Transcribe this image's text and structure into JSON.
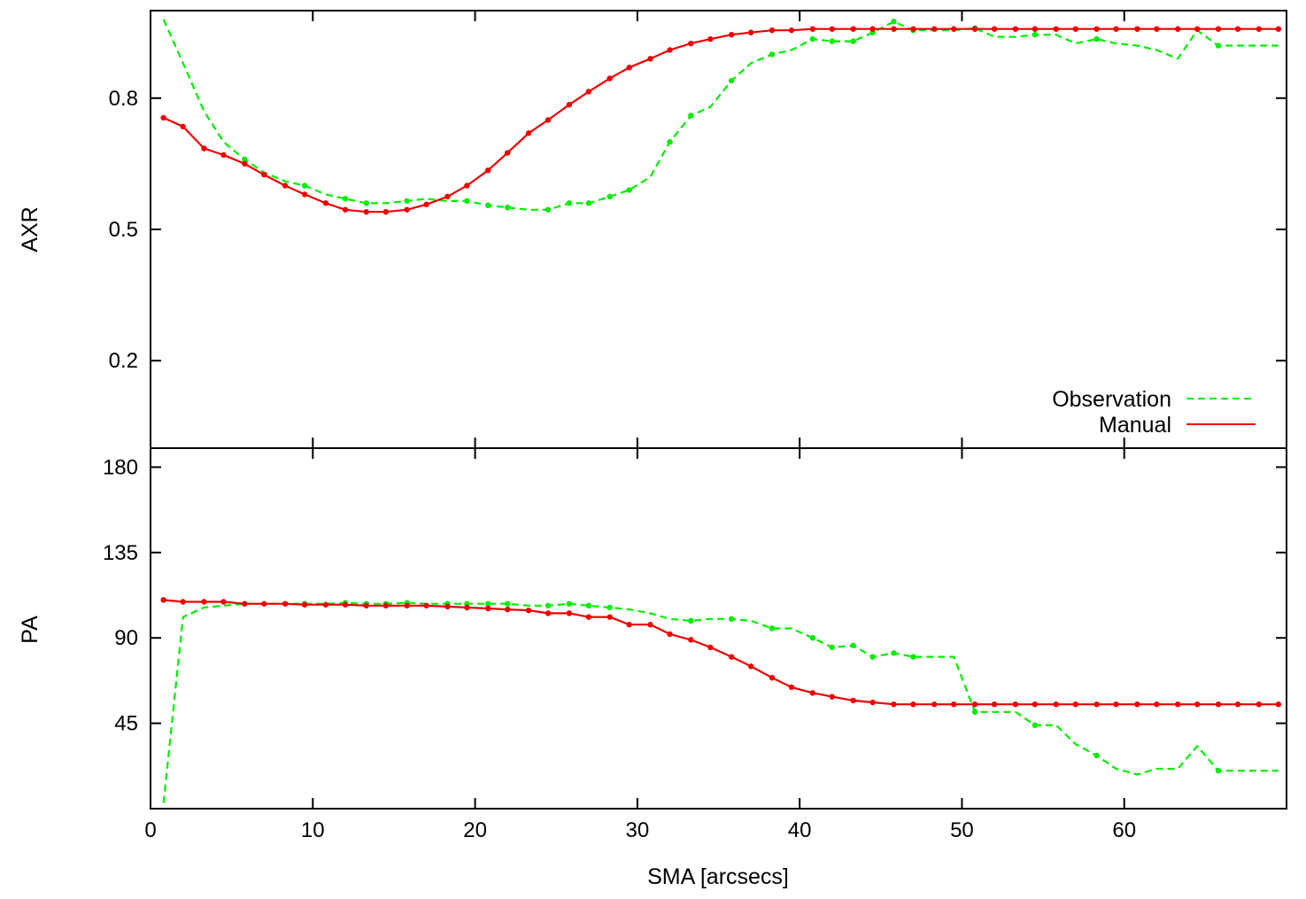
{
  "chart_data": [
    {
      "type": "line",
      "panel": "top",
      "title": "",
      "xlabel": "",
      "ylabel": "AXR",
      "xlim": [
        0,
        70
      ],
      "ylim": [
        0.0,
        1.0
      ],
      "xticks": [
        0,
        10,
        20,
        30,
        40,
        50,
        60
      ],
      "xtick_labels": [
        "",
        "",
        "",
        "",
        "",
        "",
        ""
      ],
      "yticks": [
        0.2,
        0.5,
        0.8
      ],
      "ytick_labels": [
        "0.2",
        "0.5",
        "0.8"
      ],
      "grid": false,
      "legend": {
        "position": "bottom-right",
        "entries": [
          "Observation",
          "Manual"
        ]
      },
      "series": [
        {
          "name": "Observation",
          "color": "#00ee00",
          "dash": "dashed",
          "x": [
            0.8,
            2.0,
            3.3,
            4.5,
            5.8,
            7.0,
            8.3,
            9.5,
            10.8,
            12.0,
            13.3,
            14.5,
            15.8,
            17.0,
            18.3,
            19.5,
            20.8,
            22.0,
            23.3,
            24.5,
            25.8,
            27.0,
            28.3,
            29.5,
            30.8,
            32.0,
            33.3,
            34.5,
            35.8,
            37.0,
            38.3,
            39.5,
            40.8,
            42.0,
            43.3,
            44.5,
            45.8,
            47.0,
            48.3,
            49.5,
            50.8,
            52.0,
            53.3,
            54.5,
            55.8,
            57.0,
            58.3,
            59.5,
            60.8,
            62.0,
            63.3,
            64.5,
            65.8,
            67.0,
            68.3,
            69.5
          ],
          "y": [
            0.98,
            0.88,
            0.77,
            0.7,
            0.66,
            0.63,
            0.61,
            0.6,
            0.58,
            0.57,
            0.56,
            0.56,
            0.565,
            0.57,
            0.565,
            0.565,
            0.555,
            0.55,
            0.545,
            0.545,
            0.56,
            0.56,
            0.575,
            0.59,
            0.62,
            0.7,
            0.76,
            0.78,
            0.84,
            0.88,
            0.9,
            0.91,
            0.935,
            0.93,
            0.93,
            0.95,
            0.975,
            0.955,
            0.955,
            0.955,
            0.96,
            0.94,
            0.94,
            0.945,
            0.945,
            0.925,
            0.935,
            0.925,
            0.92,
            0.91,
            0.89,
            0.955,
            0.92,
            0.92,
            0.92,
            0.92
          ],
          "markers_at": [
            5.8,
            9.5,
            12.0,
            13.3,
            15.8,
            19.5,
            20.8,
            22.0,
            24.5,
            25.8,
            27.0,
            28.3,
            29.5,
            32.0,
            33.3,
            35.8,
            38.3,
            40.8,
            42.0,
            43.3,
            44.5,
            45.8,
            47.0,
            50.8,
            54.5,
            58.3,
            65.8
          ]
        },
        {
          "name": "Manual",
          "color": "#ee0000",
          "dash": "solid",
          "x": [
            0.8,
            2.0,
            3.3,
            4.5,
            5.8,
            7.0,
            8.3,
            9.5,
            10.8,
            12.0,
            13.3,
            14.5,
            15.8,
            17.0,
            18.3,
            19.5,
            20.8,
            22.0,
            23.3,
            24.5,
            25.8,
            27.0,
            28.3,
            29.5,
            30.8,
            32.0,
            33.3,
            34.5,
            35.8,
            37.0,
            38.3,
            39.5,
            40.8,
            42.0,
            43.3,
            44.5,
            45.8,
            47.0,
            48.3,
            49.5,
            50.8,
            52.0,
            53.3,
            54.5,
            55.8,
            57.0,
            58.3,
            59.5,
            60.8,
            62.0,
            63.3,
            64.5,
            65.8,
            67.0,
            68.3,
            69.5
          ],
          "y": [
            0.755,
            0.735,
            0.685,
            0.67,
            0.65,
            0.625,
            0.6,
            0.58,
            0.56,
            0.545,
            0.54,
            0.54,
            0.545,
            0.557,
            0.575,
            0.6,
            0.635,
            0.675,
            0.72,
            0.75,
            0.785,
            0.815,
            0.845,
            0.87,
            0.89,
            0.91,
            0.925,
            0.935,
            0.945,
            0.95,
            0.955,
            0.955,
            0.958,
            0.958,
            0.958,
            0.958,
            0.958,
            0.958,
            0.958,
            0.958,
            0.958,
            0.958,
            0.958,
            0.958,
            0.958,
            0.958,
            0.958,
            0.958,
            0.958,
            0.958,
            0.958,
            0.958,
            0.958,
            0.958,
            0.958,
            0.958
          ],
          "markers": true
        }
      ]
    },
    {
      "type": "line",
      "panel": "bottom",
      "title": "",
      "xlabel": "SMA [arcsecs]",
      "ylabel": "PA",
      "xlim": [
        0,
        70
      ],
      "ylim": [
        0,
        190
      ],
      "xticks": [
        0,
        10,
        20,
        30,
        40,
        50,
        60
      ],
      "xtick_labels": [
        "0",
        "10",
        "20",
        "30",
        "40",
        "50",
        "60"
      ],
      "yticks": [
        45,
        90,
        135,
        180
      ],
      "ytick_labels": [
        "45",
        "90",
        "135",
        "180"
      ],
      "grid": false,
      "series": [
        {
          "name": "Observation",
          "color": "#00ee00",
          "dash": "dashed",
          "x": [
            0.8,
            2.0,
            3.3,
            4.5,
            5.8,
            7.0,
            8.3,
            9.5,
            10.8,
            12.0,
            13.3,
            14.5,
            15.8,
            17.0,
            18.3,
            19.5,
            20.8,
            22.0,
            23.3,
            24.5,
            25.8,
            27.0,
            28.3,
            29.5,
            30.8,
            32.0,
            33.3,
            34.5,
            35.8,
            37.0,
            38.3,
            39.5,
            40.8,
            42.0,
            43.3,
            44.5,
            45.8,
            47.0,
            48.3,
            49.5,
            50.8,
            52.0,
            53.3,
            54.5,
            55.8,
            57.0,
            58.3,
            59.5,
            60.8,
            62.0,
            63.3,
            64.5,
            65.8,
            67.0,
            68.3,
            69.5
          ],
          "y": [
            3,
            101,
            106,
            107,
            108,
            108,
            108,
            108,
            108,
            108.5,
            108,
            108,
            108.5,
            108,
            108,
            108,
            108,
            108,
            107,
            107,
            108,
            107,
            106,
            105,
            103,
            100,
            99,
            100,
            100,
            99,
            95,
            95,
            90,
            85,
            86,
            80,
            82,
            80,
            80,
            80,
            51,
            51,
            51,
            44,
            44,
            34,
            28,
            21,
            18,
            21,
            21,
            33,
            20,
            20,
            20,
            20
          ],
          "markers_at": [
            5.8,
            9.5,
            12.0,
            13.3,
            14.5,
            15.8,
            18.3,
            19.5,
            20.8,
            22.0,
            24.5,
            25.8,
            27.0,
            28.3,
            33.3,
            35.8,
            38.3,
            40.8,
            42.0,
            43.3,
            44.5,
            45.8,
            47.0,
            50.8,
            54.5,
            58.3,
            65.8
          ]
        },
        {
          "name": "Manual",
          "color": "#ee0000",
          "dash": "solid",
          "x": [
            0.8,
            2.0,
            3.3,
            4.5,
            5.8,
            7.0,
            8.3,
            9.5,
            10.8,
            12.0,
            13.3,
            14.5,
            15.8,
            17.0,
            18.3,
            19.5,
            20.8,
            22.0,
            23.3,
            24.5,
            25.8,
            27.0,
            28.3,
            29.5,
            30.8,
            32.0,
            33.3,
            34.5,
            35.8,
            37.0,
            38.3,
            39.5,
            40.8,
            42.0,
            43.3,
            44.5,
            45.8,
            47.0,
            48.3,
            49.5,
            50.8,
            52.0,
            53.3,
            54.5,
            55.8,
            57.0,
            58.3,
            59.5,
            60.8,
            62.0,
            63.3,
            64.5,
            65.8,
            67.0,
            68.3,
            69.5
          ],
          "y": [
            110,
            109,
            109,
            109,
            108,
            108,
            108,
            107.5,
            107.5,
            107.5,
            107,
            107,
            107,
            107,
            106.5,
            106,
            105.5,
            105,
            104.5,
            103,
            103,
            101,
            101,
            97,
            97,
            92,
            89,
            85,
            80,
            75,
            69,
            64,
            61,
            59,
            57,
            56,
            55,
            55,
            55,
            55,
            55,
            55,
            55,
            55,
            55,
            55,
            55,
            55,
            55,
            55,
            55,
            55,
            55,
            55,
            55,
            55
          ],
          "markers": true
        }
      ]
    }
  ]
}
